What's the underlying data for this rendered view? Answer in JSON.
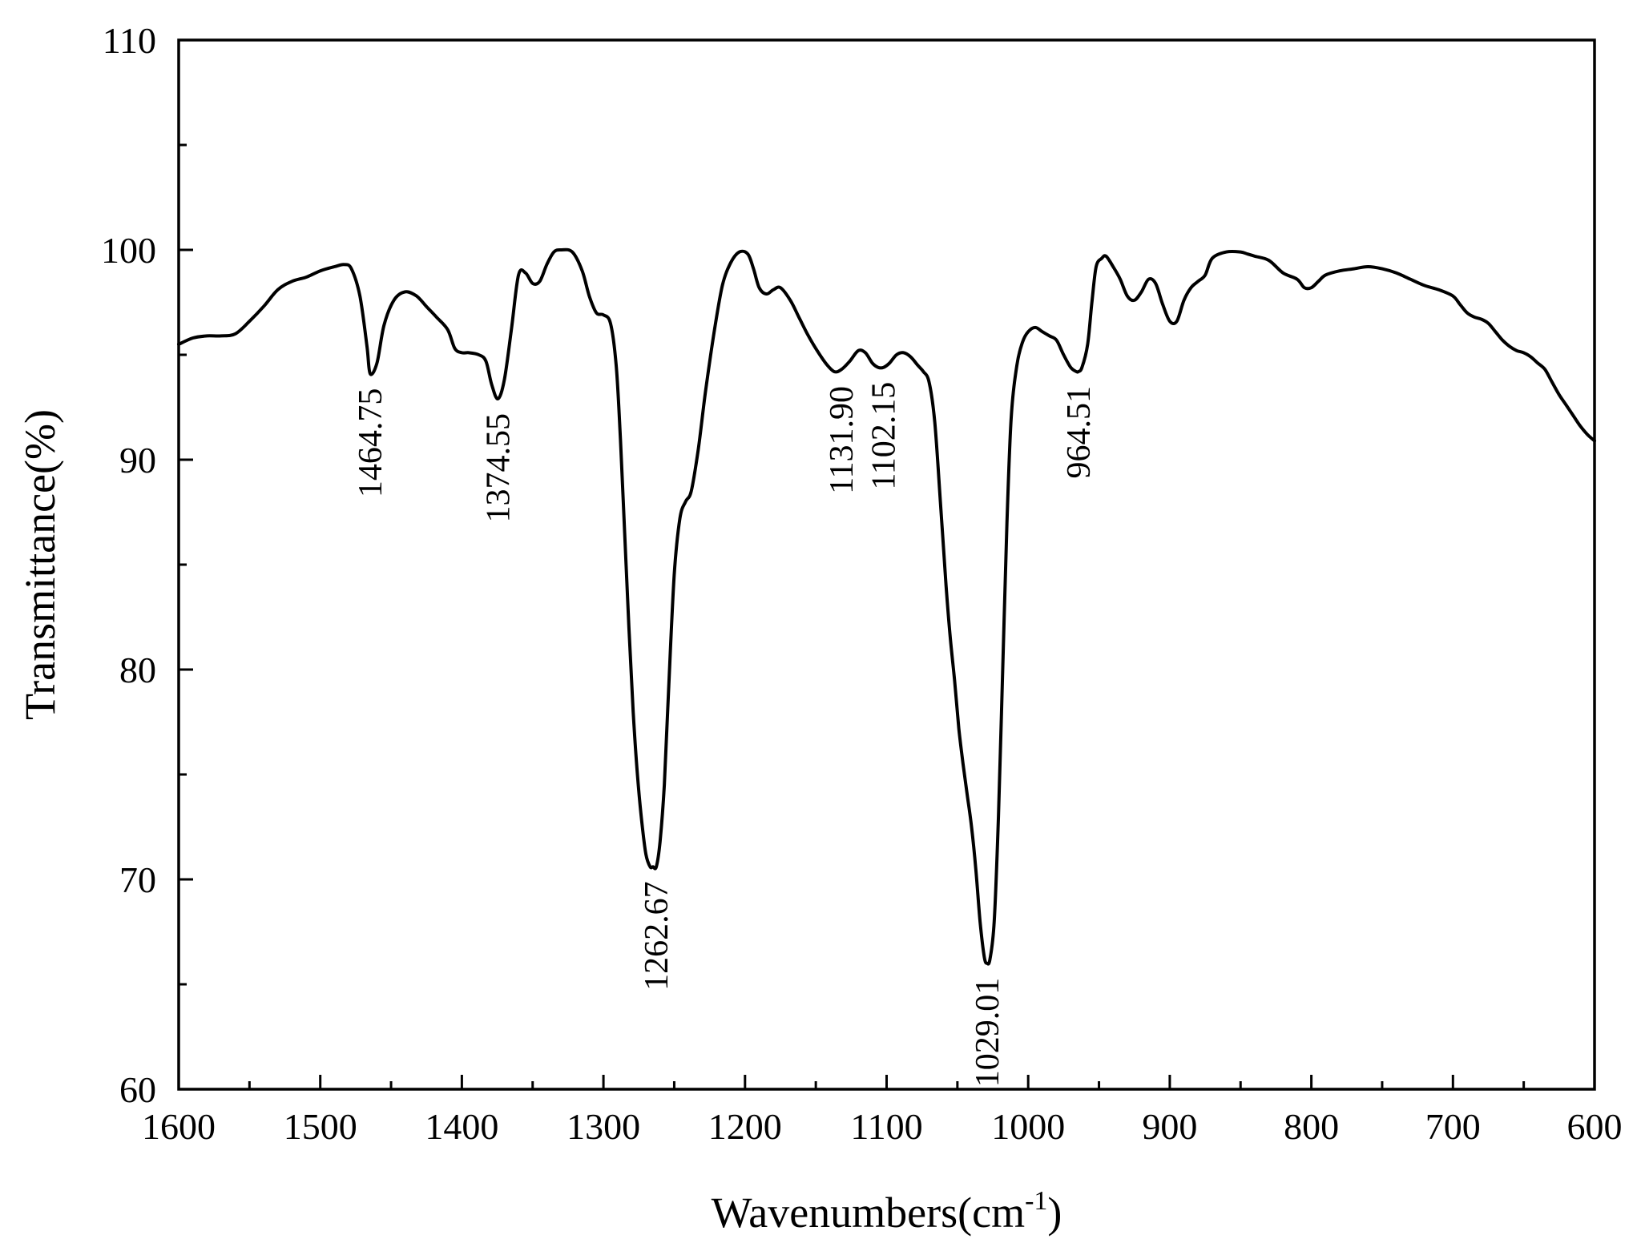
{
  "chart_data": {
    "type": "line",
    "xlabel": "Wavenumbers(cm",
    "xlabel_superscript": "-1",
    "xlabel_close": ")",
    "ylabel": "Transmittance(%)",
    "xlim": [
      1600,
      600
    ],
    "ylim": [
      60,
      110
    ],
    "x_reversed": true,
    "x_ticks": [
      1600,
      1500,
      1400,
      1300,
      1200,
      1100,
      1000,
      900,
      800,
      700,
      600
    ],
    "y_ticks": [
      60,
      70,
      80,
      90,
      100,
      110
    ],
    "grid": false,
    "line_color": "#000000",
    "series": [
      {
        "x": [
          1600,
          1590,
          1580,
          1570,
          1560,
          1550,
          1540,
          1530,
          1520,
          1510,
          1500,
          1490,
          1483,
          1478,
          1472,
          1467,
          1464.75,
          1460,
          1455,
          1448,
          1440,
          1432,
          1425,
          1418,
          1410,
          1405,
          1400,
          1395,
          1388,
          1383,
          1379,
          1374.55,
          1370,
          1365,
          1360,
          1355,
          1350,
          1345,
          1340,
          1335,
          1330,
          1322,
          1315,
          1310,
          1305,
          1300,
          1295,
          1291,
          1288,
          1285,
          1282,
          1279,
          1276,
          1273,
          1270,
          1267,
          1265,
          1262.67,
          1260,
          1257,
          1254,
          1250,
          1246,
          1242,
          1238,
          1233,
          1228,
          1222,
          1216,
          1210,
          1204,
          1198,
          1194,
          1190,
          1185,
          1180,
          1175,
          1168,
          1162,
          1156,
          1150,
          1143,
          1137,
          1131.9,
          1126,
          1120,
          1115,
          1110,
          1106,
          1102.15,
          1098,
          1093,
          1088,
          1083,
          1078,
          1074,
          1070,
          1066,
          1062,
          1058,
          1055,
          1052,
          1049,
          1046,
          1043,
          1040,
          1037,
          1034,
          1031,
          1029.01,
          1027,
          1024,
          1021,
          1018,
          1015,
          1012,
          1008,
          1004,
          1000,
          995,
          990,
          985,
          980,
          975,
          970,
          966,
          964.51,
          962,
          958,
          955,
          952,
          948,
          945,
          940,
          935,
          930,
          925,
          920,
          915,
          910,
          905,
          900,
          895,
          890,
          885,
          880,
          875,
          870,
          860,
          850,
          845,
          840,
          830,
          820,
          810,
          805,
          800,
          795,
          790,
          780,
          770,
          760,
          750,
          740,
          730,
          720,
          710,
          700,
          695,
          690,
          685,
          680,
          675,
          670,
          665,
          660,
          655,
          650,
          645,
          640,
          635,
          630,
          625,
          620,
          615,
          610,
          605,
          600
        ],
        "y": [
          95.5,
          95.8,
          95.9,
          95.9,
          96.0,
          96.6,
          97.3,
          98.1,
          98.5,
          98.7,
          99.0,
          99.2,
          99.3,
          99.1,
          97.8,
          95.4,
          94.1,
          94.6,
          96.4,
          97.6,
          98.0,
          97.8,
          97.3,
          96.8,
          96.2,
          95.3,
          95.1,
          95.1,
          95.0,
          94.7,
          93.6,
          92.9,
          93.8,
          96.2,
          98.8,
          98.9,
          98.4,
          98.5,
          99.3,
          99.9,
          100.0,
          99.9,
          99.0,
          97.8,
          97.0,
          96.9,
          96.5,
          94.5,
          91.0,
          86.5,
          82.0,
          78.0,
          75.0,
          72.8,
          71.2,
          70.6,
          70.6,
          70.6,
          71.8,
          74.5,
          79.0,
          84.5,
          87.2,
          88.0,
          88.5,
          90.5,
          93.2,
          96.0,
          98.3,
          99.4,
          99.9,
          99.8,
          99.1,
          98.2,
          97.9,
          98.1,
          98.2,
          97.6,
          96.8,
          96.0,
          95.3,
          94.6,
          94.2,
          94.3,
          94.7,
          95.2,
          95.1,
          94.6,
          94.4,
          94.4,
          94.6,
          95.0,
          95.1,
          94.9,
          94.5,
          94.2,
          93.7,
          91.8,
          88.0,
          84.0,
          81.5,
          79.5,
          77.2,
          75.5,
          74.0,
          72.5,
          70.5,
          68.0,
          66.3,
          66.0,
          66.2,
          68.0,
          73.0,
          80.0,
          87.0,
          92.0,
          94.5,
          95.6,
          96.1,
          96.3,
          96.1,
          95.9,
          95.7,
          95.0,
          94.4,
          94.2,
          94.2,
          94.4,
          95.5,
          97.5,
          99.2,
          99.6,
          99.7,
          99.2,
          98.6,
          97.8,
          97.6,
          98.0,
          98.6,
          98.4,
          97.4,
          96.6,
          96.6,
          97.6,
          98.2,
          98.5,
          98.8,
          99.6,
          99.9,
          99.9,
          99.8,
          99.7,
          99.5,
          98.9,
          98.6,
          98.2,
          98.2,
          98.5,
          98.8,
          99.0,
          99.1,
          99.2,
          99.1,
          98.9,
          98.6,
          98.3,
          98.1,
          97.8,
          97.4,
          97.0,
          96.8,
          96.7,
          96.5,
          96.1,
          95.7,
          95.4,
          95.2,
          95.1,
          94.9,
          94.6,
          94.3,
          93.7,
          93.1,
          92.6,
          92.1,
          91.6,
          91.2,
          90.9
        ]
      }
    ],
    "annotations": [
      {
        "text": "1464.75",
        "x": 1464.75,
        "y": 94.1
      },
      {
        "text": "1374.55",
        "x": 1374.55,
        "y": 92.9
      },
      {
        "text": "1262.67",
        "x": 1262.67,
        "y": 70.6
      },
      {
        "text": "1131.90",
        "x": 1131.9,
        "y": 94.2
      },
      {
        "text": "1102.15",
        "x": 1102.15,
        "y": 94.4
      },
      {
        "text": "1029.01",
        "x": 1029.01,
        "y": 66.0
      },
      {
        "text": "964.51",
        "x": 964.51,
        "y": 94.2
      }
    ]
  }
}
